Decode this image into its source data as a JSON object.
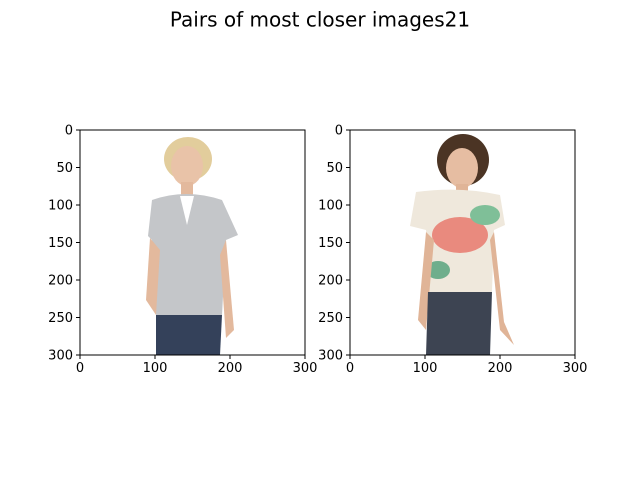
{
  "title": "Pairs of most closer images21",
  "chart_data": [
    {
      "type": "image",
      "xlim": [
        0,
        300
      ],
      "ylim": [
        300,
        0
      ],
      "xticks": [
        0,
        100,
        200,
        300
      ],
      "yticks": [
        0,
        50,
        100,
        150,
        200,
        250,
        300
      ]
    },
    {
      "type": "image",
      "xlim": [
        0,
        300
      ],
      "ylim": [
        300,
        0
      ],
      "xticks": [
        0,
        100,
        200,
        300
      ],
      "yticks": [
        0,
        50,
        100,
        150,
        200,
        250,
        300
      ]
    }
  ]
}
